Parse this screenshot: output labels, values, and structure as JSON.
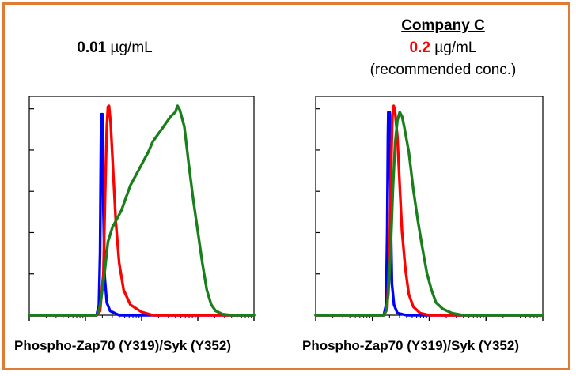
{
  "colors": {
    "frame": "#e07b35",
    "highlight_red": "#ff0000",
    "axis": "#000000"
  },
  "panels": {
    "left": {
      "company": "",
      "conc_value": "0.01",
      "conc_unit": " µg/mL",
      "note": "",
      "xlabel": "Phospho-Zap70 (Y319)/Syk (Y352)"
    },
    "right": {
      "company": "Company C",
      "conc_value": "0.2",
      "conc_unit": " µg/mL",
      "note": "(recommended conc.)",
      "xlabel": "Phospho-Zap70 (Y319)/Syk (Y352)"
    }
  },
  "chart_data": [
    {
      "type": "line",
      "title": "0.01 µg/mL",
      "xlabel": "Phospho-Zap70 (Y319)/Syk (Y352)",
      "ylabel": "",
      "xlim": [
        0,
        1
      ],
      "ylim": [
        0,
        1
      ],
      "x_scale": "log (flow cytometry histogram)",
      "series": [
        {
          "color": "#0000ff",
          "points": [
            [
              0,
              0
            ],
            [
              0.3,
              0
            ],
            [
              0.31,
              0.05
            ],
            [
              0.315,
              0.3
            ],
            [
              0.318,
              0.7
            ],
            [
              0.32,
              0.96
            ],
            [
              0.326,
              0.96
            ],
            [
              0.33,
              0.5
            ],
            [
              0.336,
              0.18
            ],
            [
              0.345,
              0.06
            ],
            [
              0.36,
              0.02
            ],
            [
              0.4,
              0
            ],
            [
              1,
              0
            ]
          ]
        },
        {
          "color": "#ff0000",
          "points": [
            [
              0,
              0
            ],
            [
              0.3,
              0
            ],
            [
              0.315,
              0.02
            ],
            [
              0.33,
              0.2
            ],
            [
              0.338,
              0.6
            ],
            [
              0.345,
              0.9
            ],
            [
              0.35,
              0.995
            ],
            [
              0.355,
              1.0
            ],
            [
              0.362,
              0.92
            ],
            [
              0.372,
              0.72
            ],
            [
              0.385,
              0.45
            ],
            [
              0.4,
              0.25
            ],
            [
              0.42,
              0.12
            ],
            [
              0.45,
              0.05
            ],
            [
              0.5,
              0.015
            ],
            [
              0.55,
              0
            ],
            [
              1,
              0
            ]
          ]
        },
        {
          "color": "#1a7f1a",
          "points": [
            [
              0,
              0
            ],
            [
              0.3,
              0
            ],
            [
              0.31,
              0.02
            ],
            [
              0.32,
              0.08
            ],
            [
              0.335,
              0.2
            ],
            [
              0.35,
              0.35
            ],
            [
              0.37,
              0.42
            ],
            [
              0.39,
              0.46
            ],
            [
              0.41,
              0.5
            ],
            [
              0.43,
              0.56
            ],
            [
              0.45,
              0.62
            ],
            [
              0.47,
              0.66
            ],
            [
              0.49,
              0.7
            ],
            [
              0.51,
              0.74
            ],
            [
              0.53,
              0.78
            ],
            [
              0.55,
              0.83
            ],
            [
              0.57,
              0.86
            ],
            [
              0.59,
              0.89
            ],
            [
              0.61,
              0.92
            ],
            [
              0.63,
              0.95
            ],
            [
              0.65,
              0.97
            ],
            [
              0.66,
              1.0
            ],
            [
              0.67,
              0.98
            ],
            [
              0.69,
              0.9
            ],
            [
              0.71,
              0.72
            ],
            [
              0.73,
              0.55
            ],
            [
              0.75,
              0.4
            ],
            [
              0.77,
              0.25
            ],
            [
              0.79,
              0.12
            ],
            [
              0.81,
              0.05
            ],
            [
              0.83,
              0.02
            ],
            [
              0.86,
              0.005
            ],
            [
              0.9,
              0
            ],
            [
              1,
              0
            ]
          ]
        }
      ]
    },
    {
      "type": "line",
      "title": "Company C 0.2 µg/mL (recommended conc.)",
      "xlabel": "Phospho-Zap70 (Y319)/Syk (Y352)",
      "ylabel": "",
      "xlim": [
        0,
        1
      ],
      "ylim": [
        0,
        1
      ],
      "x_scale": "log (flow cytometry histogram)",
      "series": [
        {
          "color": "#0000ff",
          "points": [
            [
              0,
              0
            ],
            [
              0.3,
              0
            ],
            [
              0.31,
              0.05
            ],
            [
              0.315,
              0.4
            ],
            [
              0.318,
              0.85
            ],
            [
              0.32,
              0.97
            ],
            [
              0.326,
              0.97
            ],
            [
              0.33,
              0.5
            ],
            [
              0.336,
              0.15
            ],
            [
              0.345,
              0.05
            ],
            [
              0.36,
              0.01
            ],
            [
              0.4,
              0
            ],
            [
              1,
              0
            ]
          ]
        },
        {
          "color": "#ff0000",
          "points": [
            [
              0,
              0
            ],
            [
              0.3,
              0
            ],
            [
              0.315,
              0.03
            ],
            [
              0.325,
              0.3
            ],
            [
              0.332,
              0.7
            ],
            [
              0.338,
              0.95
            ],
            [
              0.344,
              1.0
            ],
            [
              0.35,
              0.97
            ],
            [
              0.36,
              0.85
            ],
            [
              0.37,
              0.62
            ],
            [
              0.38,
              0.4
            ],
            [
              0.395,
              0.22
            ],
            [
              0.41,
              0.1
            ],
            [
              0.43,
              0.04
            ],
            [
              0.46,
              0.01
            ],
            [
              0.5,
              0
            ],
            [
              1,
              0
            ]
          ]
        },
        {
          "color": "#1a7f1a",
          "points": [
            [
              0,
              0
            ],
            [
              0.3,
              0
            ],
            [
              0.31,
              0.02
            ],
            [
              0.32,
              0.1
            ],
            [
              0.33,
              0.3
            ],
            [
              0.34,
              0.6
            ],
            [
              0.35,
              0.82
            ],
            [
              0.36,
              0.93
            ],
            [
              0.37,
              0.97
            ],
            [
              0.38,
              0.95
            ],
            [
              0.39,
              0.9
            ],
            [
              0.41,
              0.78
            ],
            [
              0.43,
              0.6
            ],
            [
              0.45,
              0.45
            ],
            [
              0.47,
              0.32
            ],
            [
              0.49,
              0.2
            ],
            [
              0.51,
              0.12
            ],
            [
              0.53,
              0.06
            ],
            [
              0.56,
              0.03
            ],
            [
              0.6,
              0.01
            ],
            [
              0.65,
              0
            ],
            [
              1,
              0
            ]
          ]
        }
      ]
    }
  ]
}
